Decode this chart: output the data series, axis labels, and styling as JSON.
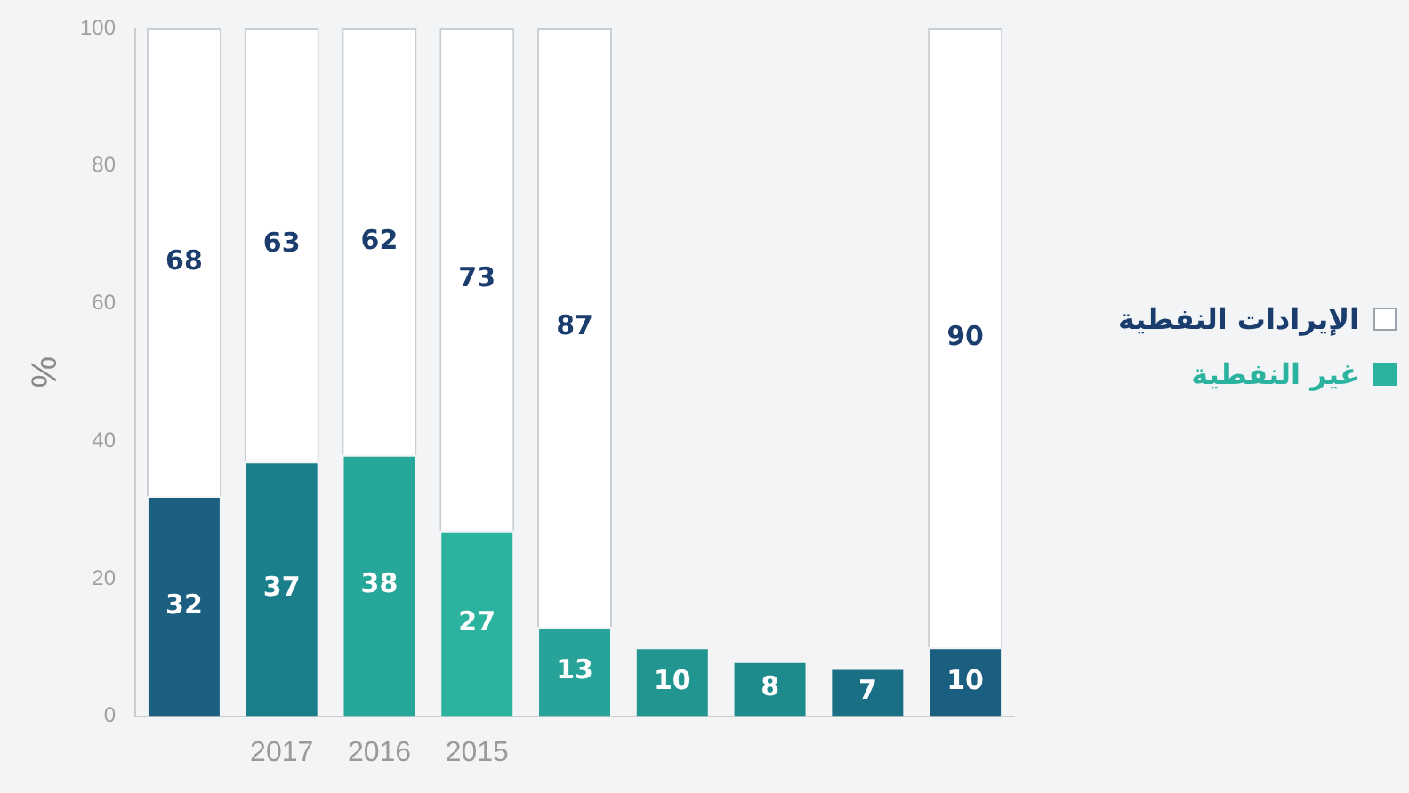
{
  "chart_data": {
    "type": "bar",
    "stacked": true,
    "categories": [
      null,
      "2017",
      "2016",
      "2015",
      null,
      null,
      null,
      null,
      null
    ],
    "series": [
      {
        "name": "غير النفطية",
        "color": "#2bb3a0",
        "colors": [
          "#1d5f80",
          "#1a7f8a",
          "#27a69a",
          "#2bb3a0",
          "#27a39a",
          "#21958f",
          "#1d8a8c",
          "#1b6f85",
          "#1a5e80"
        ],
        "values": [
          32,
          37,
          38,
          27,
          13,
          10,
          8,
          7,
          10
        ]
      },
      {
        "name": "الإيرادات النفطية",
        "color": "#ffffff",
        "values": [
          68,
          63,
          62,
          73,
          87,
          null,
          null,
          null,
          90
        ]
      }
    ],
    "ylabel": "%",
    "ylim": [
      0,
      100
    ],
    "yticks": [
      0,
      20,
      40,
      60,
      80,
      100
    ],
    "data_labels": true,
    "legend": "right",
    "grid": false
  }
}
